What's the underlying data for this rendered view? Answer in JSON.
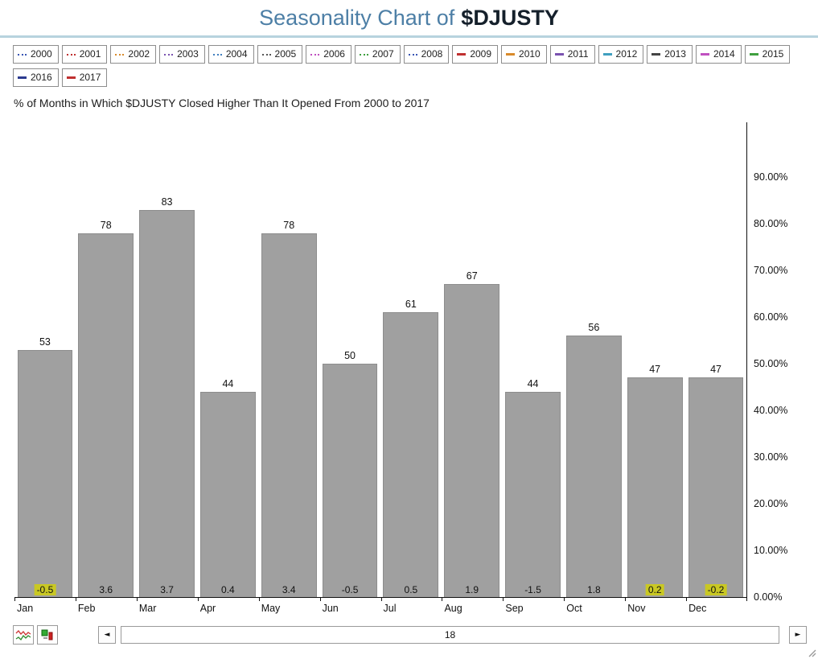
{
  "header": {
    "title_light": "Seasonality Chart of",
    "title_bold": "$DJUSTY"
  },
  "legend": {
    "years": [
      {
        "label": "2000",
        "color": "#3a56b4",
        "dashed": true
      },
      {
        "label": "2001",
        "color": "#c03030",
        "dashed": true
      },
      {
        "label": "2002",
        "color": "#d98a2b",
        "dashed": true
      },
      {
        "label": "2003",
        "color": "#7a52b0",
        "dashed": true
      },
      {
        "label": "2004",
        "color": "#3f7fbf",
        "dashed": true
      },
      {
        "label": "2005",
        "color": "#555555",
        "dashed": true
      },
      {
        "label": "2006",
        "color": "#c050c0",
        "dashed": true
      },
      {
        "label": "2007",
        "color": "#3fa03f",
        "dashed": true
      },
      {
        "label": "2008",
        "color": "#3a56b4",
        "dashed": true
      },
      {
        "label": "2009",
        "color": "#c03030",
        "dashed": false
      },
      {
        "label": "2010",
        "color": "#d98a2b",
        "dashed": false
      },
      {
        "label": "2011",
        "color": "#7a52b0",
        "dashed": false
      },
      {
        "label": "2012",
        "color": "#3f9fbf",
        "dashed": false
      },
      {
        "label": "2013",
        "color": "#444444",
        "dashed": false
      },
      {
        "label": "2014",
        "color": "#c050c0",
        "dashed": false
      },
      {
        "label": "2015",
        "color": "#3fa03f",
        "dashed": false
      },
      {
        "label": "2016",
        "color": "#2b3a8f",
        "dashed": false
      },
      {
        "label": "2017",
        "color": "#c03030",
        "dashed": false
      }
    ]
  },
  "chart_data": {
    "type": "bar",
    "title": "% of Months in Which $DJUSTY Closed Higher Than It Opened From 2000 to 2017",
    "categories": [
      "Jan",
      "Feb",
      "Mar",
      "Apr",
      "May",
      "Jun",
      "Jul",
      "Aug",
      "Sep",
      "Oct",
      "Nov",
      "Dec"
    ],
    "values": [
      53,
      78,
      83,
      44,
      78,
      50,
      61,
      67,
      44,
      56,
      47,
      47
    ],
    "avg_change_values": [
      "-0.5",
      "3.6",
      "3.7",
      "0.4",
      "3.4",
      "-0.5",
      "0.5",
      "1.9",
      "-1.5",
      "1.8",
      "0.2",
      "-0.2"
    ],
    "avg_change_highlighted": [
      true,
      false,
      false,
      false,
      false,
      false,
      false,
      false,
      false,
      false,
      true,
      true
    ],
    "yticks": [
      {
        "value": 0,
        "label": "0.00%"
      },
      {
        "value": 10,
        "label": "10.00%"
      },
      {
        "value": 20,
        "label": "20.00%"
      },
      {
        "value": 30,
        "label": "30.00%"
      },
      {
        "value": 40,
        "label": "40.00%"
      },
      {
        "value": 50,
        "label": "50.00%"
      },
      {
        "value": 60,
        "label": "60.00%"
      },
      {
        "value": 70,
        "label": "70.00%"
      },
      {
        "value": 80,
        "label": "80.00%"
      },
      {
        "value": 90,
        "label": "90.00%"
      }
    ],
    "ylim": [
      0,
      100
    ],
    "ylabel": "",
    "xlabel": "",
    "grid": false,
    "legend_position": "top",
    "bar_color": "#a0a0a0",
    "highlight_color": "#c9c823"
  },
  "toolbar": {
    "left_arrow": "◄",
    "right_arrow": "►",
    "scroll_label": "18"
  }
}
